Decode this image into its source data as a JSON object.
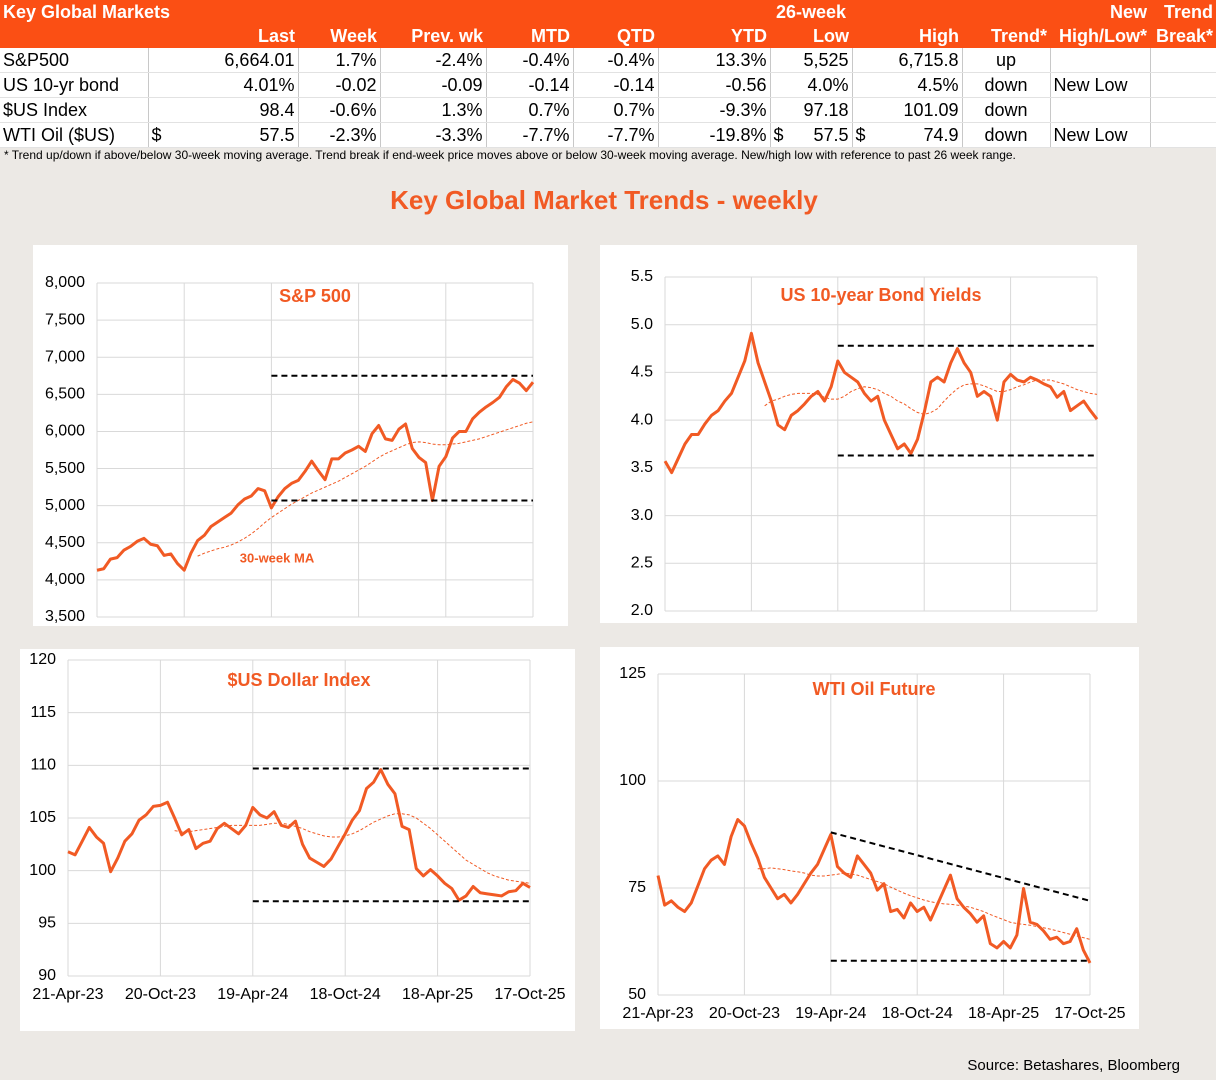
{
  "table": {
    "header_rows": [
      [
        "Key Global Markets",
        null,
        null,
        null,
        null,
        null,
        null,
        "26-week",
        null,
        null,
        "New",
        "Trend"
      ],
      [
        null,
        "Last",
        "Week",
        "Prev. wk",
        "MTD",
        "QTD",
        "YTD",
        "Low",
        "High",
        "Trend*",
        "High/Low*",
        "Break*"
      ]
    ],
    "rows": [
      [
        "S&P500",
        "6,664.01",
        "1.7%",
        "-2.4%",
        "-0.4%",
        "-0.4%",
        "13.3%",
        "5,525",
        "6,715.8",
        "up",
        null,
        null
      ],
      [
        "US 10-yr bond",
        "4.01%",
        "-0.02",
        "-0.09",
        "-0.14",
        "-0.14",
        "-0.56",
        "4.0%",
        "4.5%",
        "down",
        "New Low",
        null
      ],
      [
        "$US Index",
        "98.4",
        "-0.6%",
        "1.3%",
        "0.7%",
        "0.7%",
        "-9.3%",
        "97.18",
        "101.09",
        "down",
        null,
        null
      ],
      [
        "WTI Oil ($US)",
        {
          "sign": "$",
          "text": "57.5"
        },
        "-2.3%",
        "-3.3%",
        "-7.7%",
        "-7.7%",
        "-19.8%",
        {
          "sign": "$",
          "text": "57.5"
        },
        {
          "sign": "$",
          "text": "74.9"
        },
        "down",
        "New Low",
        null
      ]
    ],
    "footnote": "*  Trend up/down if above/below 30-week moving average. Trend break if end-week price moves above or below 30-week moving average.  New/high low with reference to past 26 week range."
  },
  "title": "Key Global Market Trends - weekly",
  "source": "Source: Betashares, Bloomberg",
  "chart_data": [
    {
      "type": "line",
      "title": "S&P 500",
      "annotation": "30-week MA",
      "xlim": [
        0,
        65
      ],
      "xgrid": [
        0,
        13,
        26,
        39,
        52,
        65
      ],
      "ylim": [
        3500,
        8000
      ],
      "yticks": [
        {
          "value": 3500,
          "label": "3,500"
        },
        {
          "value": 4000,
          "label": "4,000"
        },
        {
          "value": 4500,
          "label": "4,500"
        },
        {
          "value": 5000,
          "label": "5,000"
        },
        {
          "value": 5500,
          "label": "5,500"
        },
        {
          "value": 6000,
          "label": "6,000"
        },
        {
          "value": 6500,
          "label": "6,500"
        },
        {
          "value": 7000,
          "label": "7,000"
        },
        {
          "value": 7500,
          "label": "7,500"
        },
        {
          "value": 8000,
          "label": "8,000"
        }
      ],
      "grid": true,
      "series": [
        {
          "color": "#f15a24",
          "values": [
            4130,
            4150,
            4280,
            4300,
            4400,
            4450,
            4520,
            4560,
            4480,
            4460,
            4330,
            4350,
            4220,
            4130,
            4360,
            4530,
            4600,
            4720,
            4780,
            4840,
            4900,
            5010,
            5090,
            5130,
            5230,
            5200,
            4970,
            5120,
            5230,
            5300,
            5340,
            5460,
            5600,
            5470,
            5350,
            5630,
            5630,
            5710,
            5750,
            5800,
            5730,
            5970,
            6080,
            5900,
            5880,
            6030,
            6100,
            5770,
            5650,
            5580,
            5070,
            5530,
            5660,
            5910,
            6000,
            6000,
            6170,
            6260,
            6330,
            6390,
            6460,
            6600,
            6700,
            6650,
            6550,
            6664
          ]
        },
        {
          "color": "#f15a24",
          "dashed": true,
          "values": [
            null,
            null,
            null,
            null,
            null,
            null,
            null,
            null,
            null,
            null,
            null,
            null,
            null,
            null,
            null,
            4320,
            4360,
            4390,
            4420,
            4440,
            4470,
            4510,
            4560,
            4620,
            4690,
            4770,
            4840,
            4900,
            4960,
            5020,
            5070,
            5120,
            5170,
            5210,
            5250,
            5290,
            5330,
            5380,
            5430,
            5480,
            5530,
            5590,
            5650,
            5700,
            5740,
            5780,
            5820,
            5850,
            5860,
            5850,
            5830,
            5820,
            5820,
            5830,
            5840,
            5860,
            5880,
            5900,
            5930,
            5960,
            5990,
            6020,
            6050,
            6080,
            6110,
            6130
          ]
        }
      ],
      "reference_lines": [
        {
          "color": "#000000",
          "x": [
            26,
            65
          ],
          "y": [
            6750,
            6750
          ]
        },
        {
          "color": "#000000",
          "x": [
            26,
            65
          ],
          "y": [
            5070,
            5070
          ]
        }
      ]
    },
    {
      "type": "line",
      "title": "US 10-year Bond Yields",
      "xlim": [
        0,
        65
      ],
      "xgrid": [
        0,
        13,
        26,
        39,
        52,
        65
      ],
      "ylim": [
        2,
        5.5
      ],
      "yticks": [
        {
          "value": 2,
          "label": "2.0"
        },
        2.5,
        {
          "value": 3,
          "label": "3.0"
        },
        3.5,
        {
          "value": 4,
          "label": "4.0"
        },
        4.5,
        {
          "value": 5,
          "label": "5.0"
        },
        5.5
      ],
      "grid": true,
      "series": [
        {
          "color": "#f15a24",
          "values": [
            3.57,
            3.45,
            3.6,
            3.75,
            3.85,
            3.85,
            3.96,
            4.05,
            4.1,
            4.2,
            4.28,
            4.45,
            4.62,
            4.91,
            4.6,
            4.4,
            4.2,
            3.95,
            3.9,
            4.05,
            4.1,
            4.17,
            4.25,
            4.3,
            4.2,
            4.35,
            4.62,
            4.5,
            4.45,
            4.4,
            4.28,
            4.2,
            4.25,
            4.0,
            3.85,
            3.7,
            3.75,
            3.65,
            3.8,
            4.08,
            4.4,
            4.45,
            4.4,
            4.6,
            4.75,
            4.6,
            4.5,
            4.25,
            4.3,
            4.25,
            4.0,
            4.4,
            4.48,
            4.42,
            4.4,
            4.45,
            4.42,
            4.38,
            4.35,
            4.24,
            4.3,
            4.1,
            4.15,
            4.2,
            4.1,
            4.01
          ]
        },
        {
          "color": "#f15a24",
          "dashed": true,
          "values": [
            null,
            null,
            null,
            null,
            null,
            null,
            null,
            null,
            null,
            null,
            null,
            null,
            null,
            null,
            null,
            4.15,
            4.2,
            4.22,
            4.25,
            4.27,
            4.28,
            4.28,
            4.28,
            4.27,
            4.24,
            4.22,
            4.22,
            4.25,
            4.3,
            4.33,
            4.35,
            4.34,
            4.32,
            4.28,
            4.25,
            4.2,
            4.17,
            4.12,
            4.08,
            4.06,
            4.08,
            4.12,
            4.2,
            4.27,
            4.33,
            4.37,
            4.38,
            4.38,
            4.36,
            4.33,
            4.3,
            4.3,
            4.32,
            4.35,
            4.37,
            4.4,
            4.42,
            4.42,
            4.42,
            4.4,
            4.38,
            4.35,
            4.32,
            4.3,
            4.28,
            4.27
          ]
        }
      ],
      "reference_lines": [
        {
          "color": "#000000",
          "x": [
            26,
            65
          ],
          "y": [
            4.78,
            4.78
          ]
        },
        {
          "color": "#000000",
          "x": [
            26,
            65
          ],
          "y": [
            3.63,
            3.63
          ]
        }
      ]
    },
    {
      "type": "line",
      "title": "$US Dollar Index",
      "xlim": [
        0,
        65
      ],
      "xticks": [
        {
          "value": 0,
          "label": "21-Apr-23"
        },
        {
          "value": 13,
          "label": "20-Oct-23"
        },
        {
          "value": 26,
          "label": "19-Apr-24"
        },
        {
          "value": 39,
          "label": "18-Oct-24"
        },
        {
          "value": 52,
          "label": "18-Apr-25"
        },
        {
          "value": 65,
          "label": "17-Oct-25"
        }
      ],
      "ylim": [
        90,
        120
      ],
      "yticks": [
        90,
        95,
        100,
        105,
        110,
        115,
        120
      ],
      "grid": true,
      "series": [
        {
          "color": "#f15a24",
          "values": [
            101.8,
            101.5,
            102.8,
            104.1,
            103.2,
            102.6,
            99.9,
            101.2,
            102.8,
            103.5,
            104.8,
            105.3,
            106.1,
            106.2,
            106.5,
            105.0,
            103.4,
            103.9,
            102.1,
            102.6,
            102.8,
            104.0,
            104.5,
            104.0,
            103.5,
            104.3,
            106.0,
            105.3,
            105.0,
            105.6,
            104.3,
            104.1,
            104.7,
            102.5,
            101.2,
            100.8,
            100.4,
            101.1,
            102.3,
            103.5,
            104.8,
            105.7,
            107.8,
            108.4,
            109.6,
            108.2,
            107.3,
            104.2,
            103.9,
            100.2,
            99.5,
            100.1,
            99.5,
            98.8,
            98.3,
            97.2,
            97.6,
            98.5,
            97.9,
            97.8,
            97.7,
            97.6,
            98.0,
            98.1,
            98.8,
            98.4
          ]
        },
        {
          "color": "#f15a24",
          "dashed": true,
          "values": [
            null,
            null,
            null,
            null,
            null,
            null,
            null,
            null,
            null,
            null,
            null,
            null,
            null,
            null,
            null,
            103.8,
            103.7,
            103.7,
            103.8,
            103.9,
            104.0,
            104.1,
            104.2,
            104.3,
            104.3,
            104.3,
            104.3,
            104.3,
            104.4,
            104.5,
            104.5,
            104.4,
            104.2,
            104.0,
            103.7,
            103.5,
            103.3,
            103.2,
            103.2,
            103.3,
            103.5,
            103.8,
            104.2,
            104.6,
            104.9,
            105.2,
            105.4,
            105.4,
            105.3,
            105.0,
            104.5,
            104.0,
            103.4,
            102.8,
            102.2,
            101.6,
            101.0,
            100.6,
            100.2,
            99.8,
            99.5,
            99.3,
            99.1,
            99.0,
            98.9,
            98.8
          ]
        }
      ],
      "reference_lines": [
        {
          "color": "#000000",
          "x": [
            26,
            65
          ],
          "y": [
            109.7,
            109.7
          ]
        },
        {
          "color": "#000000",
          "x": [
            26,
            65
          ],
          "y": [
            97.1,
            97.1
          ]
        }
      ]
    },
    {
      "type": "line",
      "title": "WTI Oil Future",
      "xlim": [
        0,
        65
      ],
      "xticks": [
        {
          "value": 0,
          "label": "21-Apr-23"
        },
        {
          "value": 13,
          "label": "20-Oct-23"
        },
        {
          "value": 26,
          "label": "19-Apr-24"
        },
        {
          "value": 39,
          "label": "18-Oct-24"
        },
        {
          "value": 52,
          "label": "18-Apr-25"
        },
        {
          "value": 65,
          "label": "17-Oct-25"
        }
      ],
      "ylim": [
        50,
        125
      ],
      "yticks": [
        50,
        75,
        100,
        125
      ],
      "grid": true,
      "series": [
        {
          "color": "#f15a24",
          "values": [
            77.9,
            71.0,
            72.0,
            70.5,
            69.5,
            71.5,
            75.5,
            79.5,
            81.5,
            82.5,
            80.5,
            87.0,
            91.0,
            89.5,
            85.5,
            82.0,
            77.5,
            75.0,
            72.5,
            73.5,
            71.5,
            73.5,
            76.0,
            78.5,
            80.5,
            84.0,
            87.5,
            80.0,
            78.5,
            77.5,
            82.5,
            80.5,
            78.5,
            74.5,
            76.0,
            69.5,
            70.0,
            68.0,
            71.5,
            69.5,
            70.5,
            67.5,
            71.0,
            74.5,
            78.0,
            72.5,
            70.5,
            69.0,
            67.0,
            68.5,
            62.0,
            61.0,
            62.5,
            61.0,
            64.0,
            74.9,
            67.0,
            66.5,
            65.0,
            63.0,
            63.5,
            62.0,
            62.5,
            65.5,
            60.5,
            57.5
          ]
        },
        {
          "color": "#f15a24",
          "dashed": true,
          "values": [
            null,
            null,
            null,
            null,
            null,
            null,
            null,
            null,
            null,
            null,
            null,
            null,
            null,
            null,
            null,
            79.5,
            79.5,
            79.7,
            79.5,
            79.3,
            79.0,
            78.8,
            78.5,
            78.0,
            77.8,
            77.8,
            78.0,
            78.2,
            78.5,
            78.3,
            78.0,
            77.5,
            77.0,
            76.5,
            76.0,
            75.2,
            74.5,
            73.8,
            73.2,
            72.7,
            72.2,
            71.8,
            71.5,
            71.3,
            71.2,
            71.0,
            70.8,
            70.5,
            70.0,
            69.5,
            68.8,
            68.2,
            67.6,
            67.0,
            66.7,
            66.5,
            66.3,
            66.0,
            65.7,
            65.4,
            65.0,
            64.6,
            64.2,
            63.8,
            63.4,
            63.0
          ]
        }
      ],
      "reference_lines": [
        {
          "color": "#000000",
          "x": [
            26,
            65
          ],
          "y": [
            88,
            72
          ]
        },
        {
          "color": "#000000",
          "x": [
            26,
            65
          ],
          "y": [
            58,
            58
          ]
        }
      ]
    }
  ]
}
